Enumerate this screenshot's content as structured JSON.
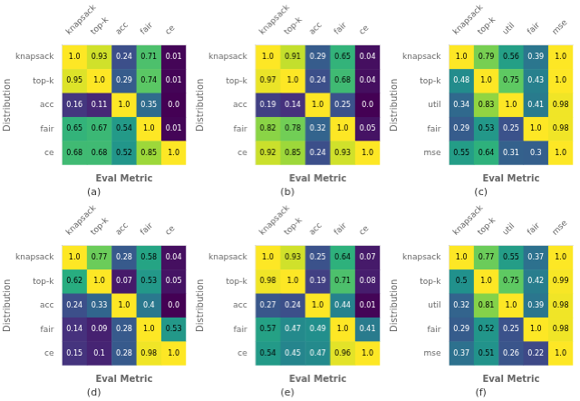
{
  "chart_data": [
    {
      "type": "heatmap",
      "title": "(a)",
      "xlabel": "Eval Metric",
      "ylabel": "Distribution",
      "categories": [
        "knapsack",
        "top-k",
        "acc",
        "fair",
        "ce"
      ],
      "row_categories": [
        "knapsack",
        "top-k",
        "acc",
        "fair",
        "ce"
      ],
      "values": [
        [
          1.0,
          0.93,
          0.24,
          0.71,
          0.01
        ],
        [
          0.95,
          1.0,
          0.29,
          0.74,
          0.01
        ],
        [
          0.16,
          0.11,
          1.0,
          0.35,
          0.0
        ],
        [
          0.65,
          0.67,
          0.54,
          1.0,
          0.01
        ],
        [
          0.68,
          0.68,
          0.52,
          0.85,
          1.0
        ]
      ],
      "value_labels": [
        [
          "1.0",
          "0.93",
          "0.24",
          "0.71",
          "0.01"
        ],
        [
          "0.95",
          "1.0",
          "0.29",
          "0.74",
          "0.01"
        ],
        [
          "0.16",
          "0.11",
          "1.0",
          "0.35",
          "0.0"
        ],
        [
          "0.65",
          "0.67",
          "0.54",
          "1.0",
          "0.01"
        ],
        [
          "0.68",
          "0.68",
          "0.52",
          "0.85",
          "1.0"
        ]
      ],
      "color": "viridis",
      "color_range": [
        0.0,
        1.0
      ],
      "data_labels": true,
      "grid": false
    },
    {
      "type": "heatmap",
      "title": "(b)",
      "xlabel": "Eval Metric",
      "ylabel": "Distribution",
      "categories": [
        "knapsack",
        "top-k",
        "acc",
        "fair",
        "ce"
      ],
      "row_categories": [
        "knapsack",
        "top-k",
        "acc",
        "fair",
        "ce"
      ],
      "values": [
        [
          1.0,
          0.91,
          0.29,
          0.65,
          0.04
        ],
        [
          0.97,
          1.0,
          0.24,
          0.68,
          0.04
        ],
        [
          0.19,
          0.14,
          1.0,
          0.25,
          0.0
        ],
        [
          0.82,
          0.78,
          0.32,
          1.0,
          0.05
        ],
        [
          0.92,
          0.85,
          0.24,
          0.93,
          1.0
        ]
      ],
      "value_labels": [
        [
          "1.0",
          "0.91",
          "0.29",
          "0.65",
          "0.04"
        ],
        [
          "0.97",
          "1.0",
          "0.24",
          "0.68",
          "0.04"
        ],
        [
          "0.19",
          "0.14",
          "1.0",
          "0.25",
          "0.0"
        ],
        [
          "0.82",
          "0.78",
          "0.32",
          "1.0",
          "0.05"
        ],
        [
          "0.92",
          "0.85",
          "0.24",
          "0.93",
          "1.0"
        ]
      ],
      "color": "viridis",
      "color_range": [
        0.0,
        1.0
      ],
      "data_labels": true,
      "grid": false
    },
    {
      "type": "heatmap",
      "title": "(c)",
      "xlabel": "Eval Metric",
      "ylabel": "Distribution",
      "categories": [
        "knapsack",
        "top-k",
        "util",
        "fair",
        "mse"
      ],
      "row_categories": [
        "knapsack",
        "top-k",
        "util",
        "fair",
        "mse"
      ],
      "values": [
        [
          1.0,
          0.79,
          0.56,
          0.39,
          1.0
        ],
        [
          0.48,
          1.0,
          0.75,
          0.43,
          1.0
        ],
        [
          0.34,
          0.83,
          1.0,
          0.41,
          0.98
        ],
        [
          0.29,
          0.53,
          0.25,
          1.0,
          0.98
        ],
        [
          0.55,
          0.64,
          0.31,
          0.3,
          1.0
        ]
      ],
      "value_labels": [
        [
          "1.0",
          "0.79",
          "0.56",
          "0.39",
          "1.0"
        ],
        [
          "0.48",
          "1.0",
          "0.75",
          "0.43",
          "1.0"
        ],
        [
          "0.34",
          "0.83",
          "1.0",
          "0.41",
          "0.98"
        ],
        [
          "0.29",
          "0.53",
          "0.25",
          "1.0",
          "0.98"
        ],
        [
          "0.55",
          "0.64",
          "0.31",
          "0.3",
          "1.0"
        ]
      ],
      "color": "viridis",
      "color_range": [
        0.0,
        1.0
      ],
      "data_labels": true,
      "grid": false
    },
    {
      "type": "heatmap",
      "title": "(d)",
      "xlabel": "Eval Metric",
      "ylabel": "Distribution",
      "categories": [
        "knapsack",
        "top-k",
        "acc",
        "fair",
        "ce"
      ],
      "row_categories": [
        "knapsack",
        "top-k",
        "acc",
        "fair",
        "ce"
      ],
      "values": [
        [
          1.0,
          0.77,
          0.28,
          0.58,
          0.04
        ],
        [
          0.62,
          1.0,
          0.07,
          0.53,
          0.05
        ],
        [
          0.24,
          0.33,
          1.0,
          0.4,
          0.0
        ],
        [
          0.14,
          0.09,
          0.28,
          1.0,
          0.53
        ],
        [
          0.15,
          0.1,
          0.28,
          0.98,
          1.0
        ]
      ],
      "value_labels": [
        [
          "1.0",
          "0.77",
          "0.28",
          "0.58",
          "0.04"
        ],
        [
          "0.62",
          "1.0",
          "0.07",
          "0.53",
          "0.05"
        ],
        [
          "0.24",
          "0.33",
          "1.0",
          "0.4",
          "0.0"
        ],
        [
          "0.14",
          "0.09",
          "0.28",
          "1.0",
          "0.53"
        ],
        [
          "0.15",
          "0.1",
          "0.28",
          "0.98",
          "1.0"
        ]
      ],
      "color": "viridis",
      "color_range": [
        0.0,
        1.0
      ],
      "data_labels": true,
      "grid": false
    },
    {
      "type": "heatmap",
      "title": "(e)",
      "xlabel": "Eval Metric",
      "ylabel": "Distribution",
      "categories": [
        "knapsack",
        "top-k",
        "acc",
        "fair",
        "ce"
      ],
      "row_categories": [
        "knapsack",
        "top-k",
        "acc",
        "fair",
        "ce"
      ],
      "values": [
        [
          1.0,
          0.93,
          0.25,
          0.64,
          0.07
        ],
        [
          0.98,
          1.0,
          0.19,
          0.71,
          0.08
        ],
        [
          0.27,
          0.24,
          1.0,
          0.44,
          0.01
        ],
        [
          0.57,
          0.47,
          0.49,
          1.0,
          0.41
        ],
        [
          0.54,
          0.45,
          0.47,
          0.96,
          1.0
        ]
      ],
      "value_labels": [
        [
          "1.0",
          "0.93",
          "0.25",
          "0.64",
          "0.07"
        ],
        [
          "0.98",
          "1.0",
          "0.19",
          "0.71",
          "0.08"
        ],
        [
          "0.27",
          "0.24",
          "1.0",
          "0.44",
          "0.01"
        ],
        [
          "0.57",
          "0.47",
          "0.49",
          "1.0",
          "0.41"
        ],
        [
          "0.54",
          "0.45",
          "0.47",
          "0.96",
          "1.0"
        ]
      ],
      "color": "viridis",
      "color_range": [
        0.0,
        1.0
      ],
      "data_labels": true,
      "grid": false
    },
    {
      "type": "heatmap",
      "title": "(f)",
      "xlabel": "Eval Metric",
      "ylabel": "Distribution",
      "categories": [
        "knapsack",
        "top-k",
        "util",
        "fair",
        "mse"
      ],
      "row_categories": [
        "knapsack",
        "top-k",
        "util",
        "fair",
        "mse"
      ],
      "values": [
        [
          1.0,
          0.77,
          0.55,
          0.37,
          1.0
        ],
        [
          0.5,
          1.0,
          0.75,
          0.42,
          0.99
        ],
        [
          0.32,
          0.81,
          1.0,
          0.39,
          0.98
        ],
        [
          0.29,
          0.52,
          0.25,
          1.0,
          0.98
        ],
        [
          0.37,
          0.51,
          0.26,
          0.22,
          1.0
        ]
      ],
      "value_labels": [
        [
          "1.0",
          "0.77",
          "0.55",
          "0.37",
          "1.0"
        ],
        [
          "0.5",
          "1.0",
          "0.75",
          "0.42",
          "0.99"
        ],
        [
          "0.32",
          "0.81",
          "1.0",
          "0.39",
          "0.98"
        ],
        [
          "0.29",
          "0.52",
          "0.25",
          "1.0",
          "0.98"
        ],
        [
          "0.37",
          "0.51",
          "0.26",
          "0.22",
          "1.0"
        ]
      ],
      "color": "viridis",
      "color_range": [
        0.0,
        1.0
      ],
      "data_labels": true,
      "grid": false
    }
  ]
}
